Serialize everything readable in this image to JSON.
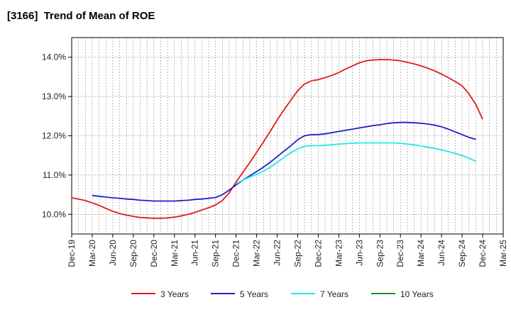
{
  "chart_data": {
    "type": "line",
    "title": "[3166]  Trend of Mean of ROE",
    "xlabel": "",
    "ylabel": "",
    "ylim": [
      9.5,
      14.5
    ],
    "yticks": [
      {
        "value": 10.0,
        "label": "10.0%"
      },
      {
        "value": 11.0,
        "label": "11.0%"
      },
      {
        "value": 12.0,
        "label": "12.0%"
      },
      {
        "value": 13.0,
        "label": "13.0%"
      },
      {
        "value": 14.0,
        "label": "14.0%"
      }
    ],
    "x_categories": [
      "Dec-19",
      "Mar-20",
      "Jun-20",
      "Sep-20",
      "Dec-20",
      "Mar-21",
      "Jun-21",
      "Sep-21",
      "Dec-21",
      "Mar-22",
      "Jun-22",
      "Sep-22",
      "Dec-22",
      "Mar-23",
      "Jun-23",
      "Sep-23",
      "Dec-23",
      "Mar-24",
      "Jun-24",
      "Sep-24",
      "Dec-24",
      "Mar-25"
    ],
    "grid": true,
    "legend_position": "bottom",
    "series": [
      {
        "name": "3 Years",
        "color": "#e31a1c",
        "points": [
          [
            0,
            10.42
          ],
          [
            0.33,
            10.39
          ],
          [
            0.67,
            10.35
          ],
          [
            1,
            10.29
          ],
          [
            1.33,
            10.23
          ],
          [
            1.67,
            10.15
          ],
          [
            2,
            10.08
          ],
          [
            2.33,
            10.02
          ],
          [
            2.67,
            9.98
          ],
          [
            3,
            9.95
          ],
          [
            3.33,
            9.92
          ],
          [
            3.67,
            9.91
          ],
          [
            4,
            9.9
          ],
          [
            4.33,
            9.9
          ],
          [
            4.67,
            9.91
          ],
          [
            5,
            9.93
          ],
          [
            5.33,
            9.96
          ],
          [
            5.67,
            10.0
          ],
          [
            6,
            10.05
          ],
          [
            6.33,
            10.11
          ],
          [
            6.67,
            10.17
          ],
          [
            7,
            10.24
          ],
          [
            7.33,
            10.35
          ],
          [
            7.67,
            10.55
          ],
          [
            8,
            10.82
          ],
          [
            8.33,
            11.07
          ],
          [
            8.67,
            11.32
          ],
          [
            9,
            11.58
          ],
          [
            9.33,
            11.84
          ],
          [
            9.67,
            12.12
          ],
          [
            10,
            12.4
          ],
          [
            10.33,
            12.66
          ],
          [
            10.67,
            12.91
          ],
          [
            11,
            13.15
          ],
          [
            11.33,
            13.32
          ],
          [
            11.67,
            13.4
          ],
          [
            12,
            13.43
          ],
          [
            12.33,
            13.48
          ],
          [
            12.67,
            13.54
          ],
          [
            13,
            13.61
          ],
          [
            13.33,
            13.7
          ],
          [
            13.67,
            13.78
          ],
          [
            14,
            13.86
          ],
          [
            14.33,
            13.91
          ],
          [
            14.67,
            13.93
          ],
          [
            15,
            13.94
          ],
          [
            15.33,
            13.94
          ],
          [
            15.67,
            13.93
          ],
          [
            16,
            13.91
          ],
          [
            16.33,
            13.87
          ],
          [
            16.67,
            13.83
          ],
          [
            17,
            13.78
          ],
          [
            17.33,
            13.72
          ],
          [
            17.67,
            13.65
          ],
          [
            18,
            13.57
          ],
          [
            18.33,
            13.48
          ],
          [
            18.67,
            13.38
          ],
          [
            19,
            13.27
          ],
          [
            19.33,
            13.07
          ],
          [
            19.67,
            12.8
          ],
          [
            20,
            12.42
          ]
        ]
      },
      {
        "name": "5 Years",
        "color": "#1f1fc8",
        "points": [
          [
            1,
            10.48
          ],
          [
            1.33,
            10.46
          ],
          [
            1.67,
            10.44
          ],
          [
            2,
            10.42
          ],
          [
            2.33,
            10.41
          ],
          [
            2.67,
            10.39
          ],
          [
            3,
            10.38
          ],
          [
            3.33,
            10.36
          ],
          [
            3.67,
            10.35
          ],
          [
            4,
            10.34
          ],
          [
            4.33,
            10.34
          ],
          [
            4.67,
            10.34
          ],
          [
            5,
            10.34
          ],
          [
            5.33,
            10.35
          ],
          [
            5.67,
            10.36
          ],
          [
            6,
            10.38
          ],
          [
            6.33,
            10.39
          ],
          [
            6.67,
            10.41
          ],
          [
            7,
            10.43
          ],
          [
            7.33,
            10.5
          ],
          [
            7.67,
            10.62
          ],
          [
            8,
            10.75
          ],
          [
            8.33,
            10.87
          ],
          [
            8.67,
            10.98
          ],
          [
            9,
            11.09
          ],
          [
            9.33,
            11.2
          ],
          [
            9.67,
            11.33
          ],
          [
            10,
            11.47
          ],
          [
            10.33,
            11.61
          ],
          [
            10.67,
            11.75
          ],
          [
            11,
            11.9
          ],
          [
            11.33,
            12.0
          ],
          [
            11.67,
            12.03
          ],
          [
            12,
            12.03
          ],
          [
            12.33,
            12.05
          ],
          [
            12.67,
            12.08
          ],
          [
            13,
            12.11
          ],
          [
            13.33,
            12.14
          ],
          [
            13.67,
            12.17
          ],
          [
            14,
            12.2
          ],
          [
            14.33,
            12.23
          ],
          [
            14.67,
            12.26
          ],
          [
            15,
            12.28
          ],
          [
            15.33,
            12.31
          ],
          [
            15.67,
            12.33
          ],
          [
            16,
            12.34
          ],
          [
            16.33,
            12.34
          ],
          [
            16.67,
            12.33
          ],
          [
            17,
            12.32
          ],
          [
            17.33,
            12.3
          ],
          [
            17.67,
            12.27
          ],
          [
            18,
            12.23
          ],
          [
            18.33,
            12.17
          ],
          [
            18.67,
            12.1
          ],
          [
            19,
            12.03
          ],
          [
            19.33,
            11.96
          ],
          [
            19.67,
            11.91
          ]
        ]
      },
      {
        "name": "7 Years",
        "color": "#1fe8ec",
        "points": [
          [
            8,
            10.78
          ],
          [
            8.33,
            10.87
          ],
          [
            8.67,
            10.95
          ],
          [
            9,
            11.02
          ],
          [
            9.33,
            11.1
          ],
          [
            9.67,
            11.2
          ],
          [
            10,
            11.32
          ],
          [
            10.33,
            11.45
          ],
          [
            10.67,
            11.57
          ],
          [
            11,
            11.67
          ],
          [
            11.33,
            11.73
          ],
          [
            11.67,
            11.75
          ],
          [
            12,
            11.75
          ],
          [
            12.33,
            11.76
          ],
          [
            12.67,
            11.77
          ],
          [
            13,
            11.79
          ],
          [
            13.33,
            11.8
          ],
          [
            13.67,
            11.81
          ],
          [
            14,
            11.82
          ],
          [
            14.33,
            11.82
          ],
          [
            14.67,
            11.82
          ],
          [
            15,
            11.82
          ],
          [
            15.33,
            11.82
          ],
          [
            15.67,
            11.82
          ],
          [
            16,
            11.81
          ],
          [
            16.33,
            11.79
          ],
          [
            16.67,
            11.77
          ],
          [
            17,
            11.74
          ],
          [
            17.33,
            11.71
          ],
          [
            17.67,
            11.68
          ],
          [
            18,
            11.64
          ],
          [
            18.33,
            11.6
          ],
          [
            18.67,
            11.55
          ],
          [
            19,
            11.5
          ],
          [
            19.33,
            11.43
          ],
          [
            19.67,
            11.35
          ]
        ]
      },
      {
        "name": "10 Years",
        "color": "#2a8a2a",
        "points": []
      }
    ]
  }
}
